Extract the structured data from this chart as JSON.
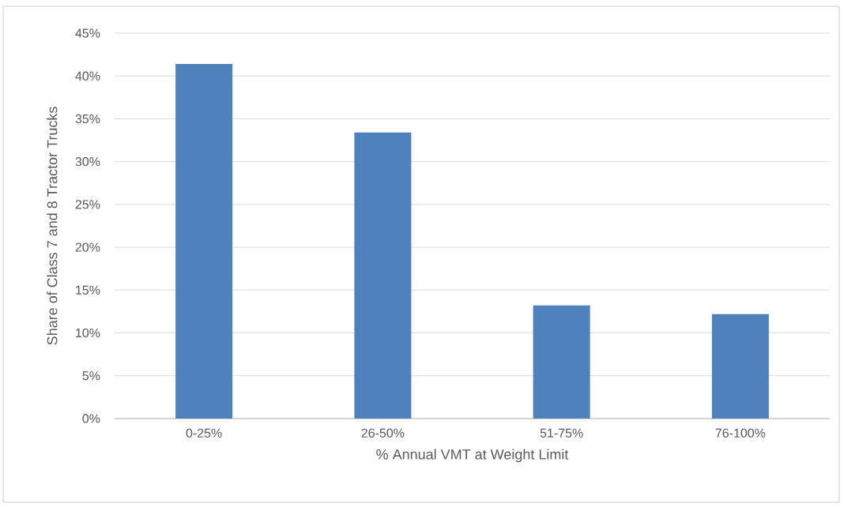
{
  "chart_data": {
    "type": "bar",
    "xlabel": "% Annual VMT at Weight Limit",
    "ylabel": "Share of Class 7 and 8 Tractor Trucks",
    "categories": [
      "0-25%",
      "26-50%",
      "51-75%",
      "76-100%"
    ],
    "values": [
      41.4,
      33.4,
      13.2,
      12.2
    ],
    "color": "#4f81bd",
    "ylim": [
      0,
      45
    ],
    "yticks": [
      {
        "value": 0,
        "label": "0%"
      },
      {
        "value": 5,
        "label": "5%"
      },
      {
        "value": 10,
        "label": "10%"
      },
      {
        "value": 15,
        "label": "15%"
      },
      {
        "value": 20,
        "label": "20%"
      },
      {
        "value": 25,
        "label": "25%"
      },
      {
        "value": 30,
        "label": "30%"
      },
      {
        "value": 35,
        "label": "35%"
      },
      {
        "value": 40,
        "label": "40%"
      },
      {
        "value": 45,
        "label": "45%"
      }
    ],
    "grid": "y"
  }
}
